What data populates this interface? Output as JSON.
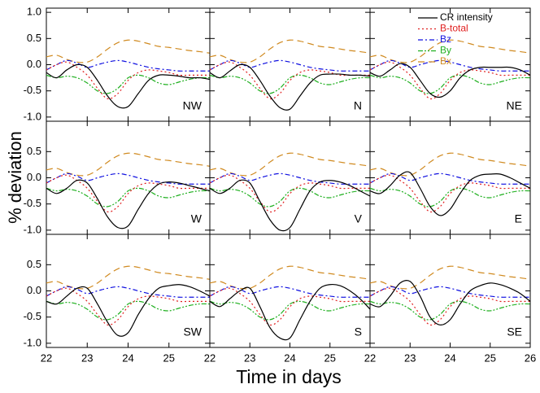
{
  "xlabel": "Time in days",
  "ylabel": "% deviation",
  "x": [
    22,
    22.25,
    22.5,
    22.75,
    23,
    23.25,
    23.5,
    23.75,
    24,
    24.25,
    24.5,
    24.75,
    25,
    25.25,
    25.5,
    25.75,
    26
  ],
  "xlim": [
    22,
    26
  ],
  "ylim": [
    -1.08,
    1.08
  ],
  "series": [
    {
      "name": "CR intensity",
      "color": "#000000"
    },
    {
      "name": "B-total",
      "color": "#e02020",
      "values": [
        -0.1,
        0.0,
        0.05,
        -0.05,
        -0.2,
        -0.45,
        -0.65,
        -0.55,
        -0.3,
        -0.15,
        -0.1,
        -0.12,
        -0.15,
        -0.2,
        -0.2,
        -0.2,
        -0.2
      ]
    },
    {
      "name": "Bz",
      "color": "#1010e0",
      "values": [
        -0.1,
        0.0,
        0.08,
        0.03,
        -0.05,
        0.0,
        0.05,
        0.08,
        0.05,
        0.0,
        -0.05,
        -0.08,
        -0.1,
        -0.12,
        -0.12,
        -0.12,
        -0.12
      ]
    },
    {
      "name": "By",
      "color": "#20b020",
      "values": [
        -0.2,
        -0.25,
        -0.22,
        -0.25,
        -0.35,
        -0.5,
        -0.55,
        -0.45,
        -0.25,
        -0.2,
        -0.25,
        -0.35,
        -0.38,
        -0.33,
        -0.28,
        -0.25,
        -0.25
      ]
    },
    {
      "name": "Bx",
      "color": "#d08a20",
      "values": [
        0.15,
        0.18,
        0.1,
        0.05,
        0.05,
        0.15,
        0.3,
        0.42,
        0.47,
        0.45,
        0.4,
        0.35,
        0.33,
        0.3,
        0.27,
        0.25,
        0.22
      ]
    }
  ],
  "chart_data": [
    {
      "type": "line",
      "title": "NW",
      "values": [
        -0.15,
        -0.25,
        -0.1,
        0.0,
        -0.05,
        -0.3,
        -0.6,
        -0.8,
        -0.8,
        -0.55,
        -0.3,
        -0.2,
        -0.2,
        -0.22,
        -0.25,
        -0.25,
        -0.28
      ],
      "yticks": [
        {
          "value": 1,
          "label": "1.0"
        },
        0.5,
        {
          "value": 0,
          "label": "0.0"
        },
        -0.5,
        {
          "value": -1,
          "label": "-1.0"
        }
      ]
    },
    {
      "type": "line",
      "title": "N",
      "values": [
        -0.15,
        -0.25,
        -0.12,
        0.0,
        -0.05,
        -0.3,
        -0.6,
        -0.82,
        -0.85,
        -0.6,
        -0.35,
        -0.2,
        -0.18,
        -0.18,
        -0.2,
        -0.2,
        -0.22
      ]
    },
    {
      "type": "line",
      "title": "NE",
      "values": [
        -0.15,
        -0.22,
        -0.1,
        0.02,
        -0.05,
        -0.3,
        -0.55,
        -0.62,
        -0.5,
        -0.25,
        -0.1,
        -0.05,
        -0.05,
        -0.05,
        -0.05,
        -0.1,
        -0.2
      ]
    },
    {
      "type": "line",
      "title": "W",
      "values": [
        -0.2,
        -0.3,
        -0.2,
        -0.05,
        -0.1,
        -0.4,
        -0.75,
        -0.95,
        -0.92,
        -0.6,
        -0.3,
        -0.12,
        -0.08,
        -0.1,
        -0.15,
        -0.2,
        -0.25
      ],
      "yticks": [
        0.5,
        {
          "value": 0,
          "label": "0.0"
        },
        -0.5,
        {
          "value": -1,
          "label": "-1.0"
        }
      ]
    },
    {
      "type": "line",
      "title": "V",
      "values": [
        -0.2,
        -0.3,
        -0.2,
        -0.05,
        -0.1,
        -0.45,
        -0.8,
        -1.0,
        -0.95,
        -0.6,
        -0.25,
        -0.08,
        -0.05,
        -0.08,
        -0.15,
        -0.25,
        -0.35
      ]
    },
    {
      "type": "line",
      "title": "E",
      "values": [
        -0.25,
        -0.3,
        -0.15,
        0.05,
        0.1,
        -0.2,
        -0.55,
        -0.72,
        -0.6,
        -0.3,
        -0.05,
        0.05,
        0.07,
        0.07,
        0.0,
        -0.1,
        -0.2
      ]
    },
    {
      "type": "line",
      "title": "SW",
      "values": [
        -0.2,
        -0.25,
        -0.1,
        0.05,
        0.05,
        -0.25,
        -0.6,
        -0.85,
        -0.8,
        -0.45,
        -0.15,
        0.05,
        0.1,
        0.12,
        0.08,
        0.0,
        -0.1
      ],
      "yticks": [
        0.5,
        {
          "value": 0,
          "label": "0.0"
        },
        -0.5,
        {
          "value": -1,
          "label": "-1.0"
        }
      ],
      "xticks": [
        22,
        23,
        24,
        25
      ]
    },
    {
      "type": "line",
      "title": "S",
      "values": [
        -0.2,
        -0.3,
        -0.15,
        0.0,
        0.05,
        -0.3,
        -0.7,
        -0.9,
        -0.9,
        -0.55,
        -0.2,
        0.05,
        0.12,
        0.1,
        0.0,
        -0.15,
        -0.35
      ],
      "xticks": [
        22,
        23,
        24,
        25
      ]
    },
    {
      "type": "line",
      "title": "SE",
      "values": [
        -0.25,
        -0.3,
        -0.1,
        0.15,
        0.18,
        -0.1,
        -0.5,
        -0.65,
        -0.55,
        -0.25,
        0.0,
        0.1,
        0.15,
        0.12,
        0.05,
        -0.05,
        -0.2
      ],
      "xticks": [
        22,
        23,
        24,
        25,
        26
      ]
    }
  ]
}
